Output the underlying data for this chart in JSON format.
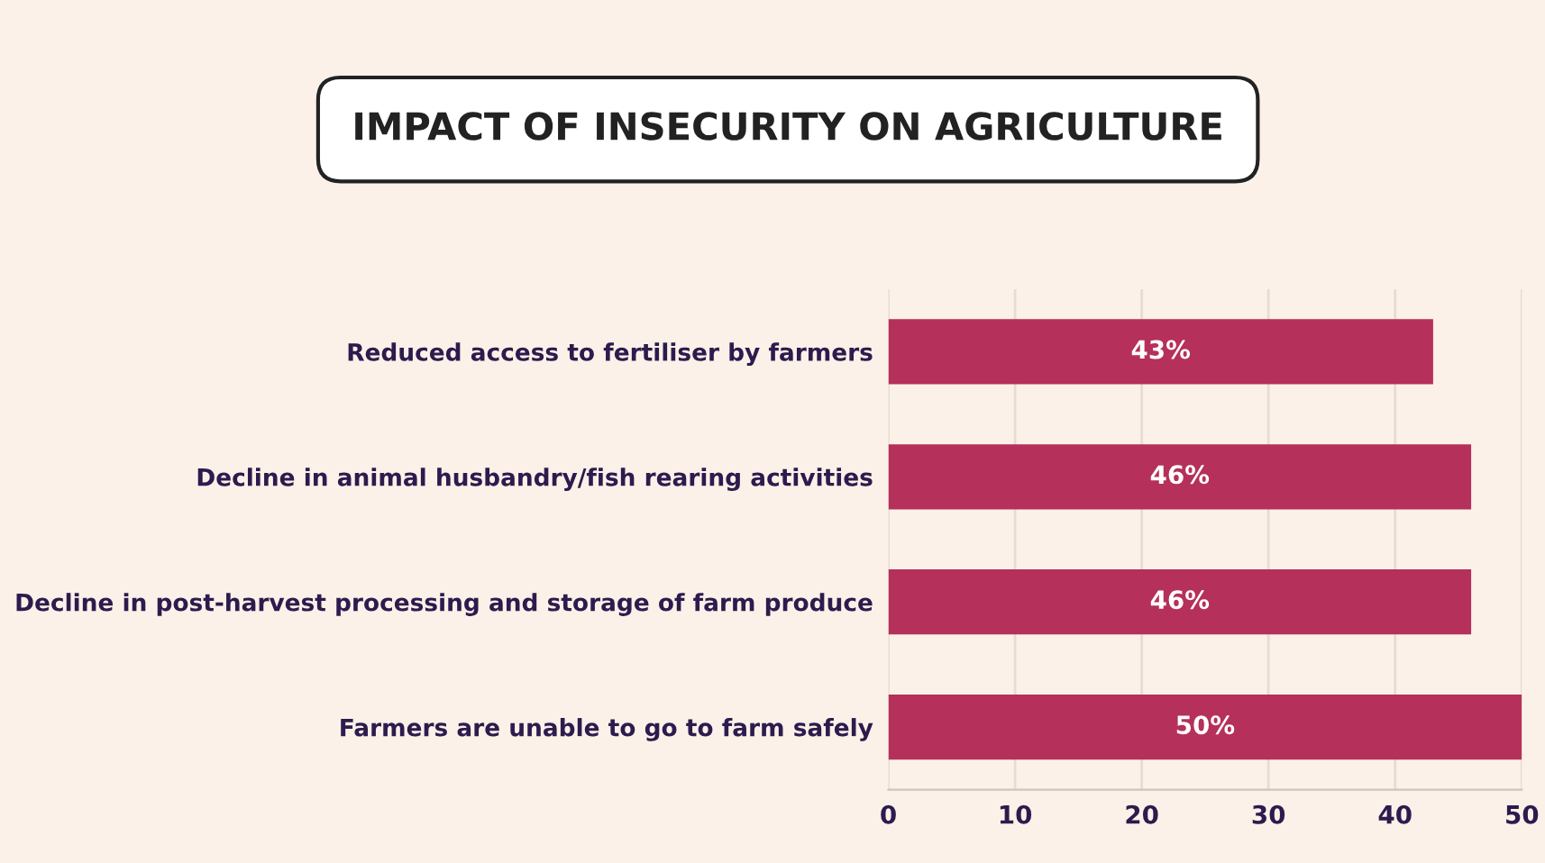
{
  "chart_data": {
    "type": "bar",
    "orientation": "horizontal",
    "title": "IMPACT OF INSECURITY ON AGRICULTURE",
    "categories": [
      "Reduced access to fertiliser by farmers",
      "Decline in animal husbandry/fish rearing activities",
      "Decline in post-harvest processing and storage of farm produce",
      "Farmers are unable to go to farm safely"
    ],
    "values": [
      43,
      46,
      46,
      50
    ],
    "value_labels": [
      "43%",
      "46%",
      "46%",
      "50%"
    ],
    "color": "#b5305a",
    "xlim": [
      0,
      50
    ],
    "xticks": [
      0,
      10,
      20,
      30,
      40,
      50
    ],
    "grid": "x",
    "legend": false
  }
}
